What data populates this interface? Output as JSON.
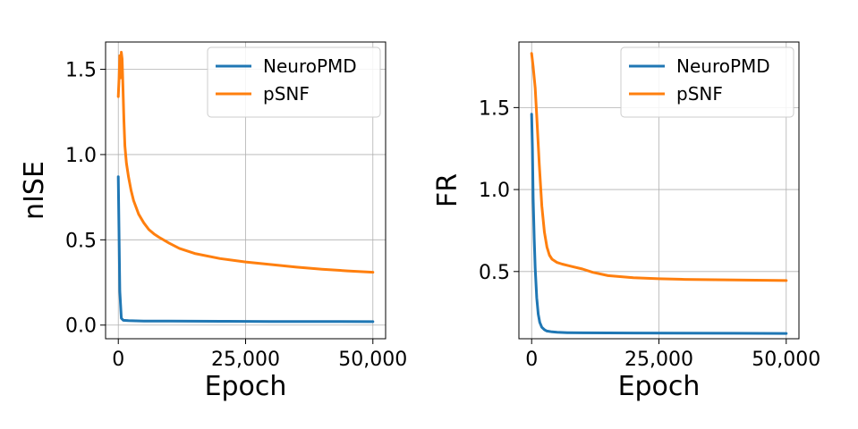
{
  "chart_data": [
    {
      "type": "line",
      "xlabel": "Epoch",
      "ylabel": "nISE",
      "xlim": [
        -2500,
        52500
      ],
      "ylim": [
        -0.08,
        1.66
      ],
      "xticks": [
        0,
        25000,
        50000
      ],
      "xtick_labels": [
        "0",
        "25,000",
        "50,000"
      ],
      "yticks": [
        0.0,
        0.5,
        1.0,
        1.5
      ],
      "ytick_labels": [
        "0.0",
        "0.5",
        "1.0",
        "1.5"
      ],
      "grid": true,
      "legend": "top-right",
      "series": [
        {
          "name": "NeuroPMD",
          "color": "#1f77b4",
          "x": [
            0,
            300,
            600,
            1000,
            2000,
            5000,
            10000,
            20000,
            30000,
            40000,
            50000
          ],
          "y": [
            0.87,
            0.2,
            0.04,
            0.028,
            0.026,
            0.024,
            0.023,
            0.022,
            0.021,
            0.021,
            0.02
          ]
        },
        {
          "name": "pSNF",
          "color": "#ff7f0e",
          "x": [
            0,
            150,
            300,
            450,
            600,
            750,
            900,
            1100,
            1300,
            1600,
            2000,
            2500,
            3000,
            4000,
            5000,
            6000,
            7000,
            8000,
            10000,
            12000,
            15000,
            20000,
            25000,
            30000,
            35000,
            40000,
            45000,
            50000
          ],
          "y": [
            1.34,
            1.45,
            1.58,
            1.45,
            1.6,
            1.56,
            1.42,
            1.2,
            1.05,
            0.95,
            0.87,
            0.79,
            0.73,
            0.65,
            0.6,
            0.56,
            0.535,
            0.515,
            0.48,
            0.45,
            0.42,
            0.39,
            0.37,
            0.355,
            0.34,
            0.328,
            0.318,
            0.31
          ]
        }
      ]
    },
    {
      "type": "line",
      "xlabel": "Epoch",
      "ylabel": "FR",
      "xlim": [
        -2500,
        52500
      ],
      "ylim": [
        0.09,
        1.9
      ],
      "xticks": [
        0,
        25000,
        50000
      ],
      "xtick_labels": [
        "0",
        "25,000",
        "50,000"
      ],
      "yticks": [
        0.5,
        1.0,
        1.5
      ],
      "ytick_labels": [
        "0.5",
        "1.0",
        "1.5"
      ],
      "grid": true,
      "legend": "top-right",
      "series": [
        {
          "name": "NeuroPMD",
          "color": "#1f77b4",
          "x": [
            0,
            150,
            300,
            500,
            700,
            1000,
            1300,
            1600,
            2000,
            2500,
            3000,
            4000,
            5000,
            7000,
            10000,
            20000,
            30000,
            40000,
            50000
          ],
          "y": [
            1.46,
            1.25,
            0.95,
            0.7,
            0.52,
            0.34,
            0.24,
            0.19,
            0.16,
            0.145,
            0.137,
            0.132,
            0.13,
            0.127,
            0.126,
            0.125,
            0.124,
            0.123,
            0.122
          ]
        },
        {
          "name": "pSNF",
          "color": "#ff7f0e",
          "x": [
            0,
            300,
            700,
            1000,
            1500,
            2000,
            2500,
            3000,
            3500,
            4000,
            5000,
            6000,
            8000,
            10000,
            12000,
            15000,
            20000,
            25000,
            30000,
            40000,
            50000
          ],
          "y": [
            1.83,
            1.75,
            1.62,
            1.45,
            1.15,
            0.9,
            0.74,
            0.65,
            0.6,
            0.575,
            0.555,
            0.545,
            0.53,
            0.515,
            0.495,
            0.475,
            0.462,
            0.456,
            0.452,
            0.448,
            0.445
          ]
        }
      ]
    }
  ]
}
